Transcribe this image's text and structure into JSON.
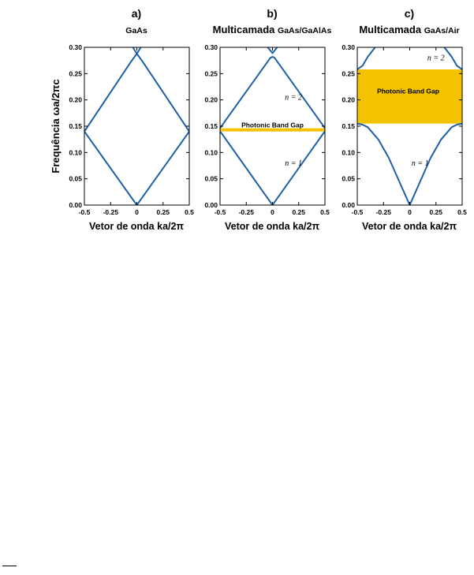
{
  "figure": {
    "ylabel": "Frequência ωa/2πc",
    "colors": {
      "band": "#1f5fa8",
      "gap": "#f3c200",
      "axis": "#000000"
    }
  },
  "chart_data": [
    {
      "type": "line",
      "panel_label": "a)",
      "title": "GaAs",
      "title_prefix": "",
      "xlabel": "",
      "ylabel": "Frequência ωa/2πc",
      "xlim": [
        -0.5,
        0.5
      ],
      "ylim": [
        0.0,
        0.3
      ],
      "x_ticks": [
        "-0.5",
        "-0.25",
        "0",
        "0.25",
        "0.5"
      ],
      "y_ticks": [
        "0.00",
        "0.05",
        "0.10",
        "0.15",
        "0.20",
        "0.25",
        "0.30"
      ],
      "gap": null,
      "band_labels": [],
      "series": [
        {
          "x": [
            -0.5,
            0.0,
            0.5
          ],
          "y": [
            0.14,
            0.0,
            0.14
          ]
        },
        {
          "x": [
            -0.5,
            -0.058,
            0.0,
            0.058,
            0.5
          ],
          "y": [
            0.14,
            0.272,
            0.288,
            0.272,
            0.14
          ]
        },
        {
          "x": [
            -0.038,
            0.0,
            0.038
          ],
          "y": [
            0.3,
            0.288,
            0.3
          ]
        }
      ]
    },
    {
      "type": "line",
      "panel_label": "b)",
      "title": "GaAs/GaAlAs",
      "title_prefix": "Multicamada",
      "xlabel": "Vetor de onda ka/2π",
      "xlim": [
        -0.5,
        0.5
      ],
      "ylim": [
        0.0,
        0.3
      ],
      "x_ticks": [
        "-0.5",
        "-0.25",
        "0",
        "0.25",
        "0.5"
      ],
      "y_ticks": [
        "0.00",
        "0.05",
        "0.10",
        "0.15",
        "0.20",
        "0.25",
        "0.30"
      ],
      "gap": {
        "label": "Photonic Band Gap",
        "y0": 0.14,
        "y1": 0.146
      },
      "band_labels": [
        {
          "text": "n = 2",
          "x": 0.2,
          "y": 0.2
        },
        {
          "text": "n = 1",
          "x": 0.2,
          "y": 0.075
        }
      ],
      "series": [
        {
          "x": [
            -0.5,
            -0.48,
            0.0,
            0.48,
            0.5
          ],
          "y": [
            0.14,
            0.135,
            0.0,
            0.135,
            0.14
          ]
        },
        {
          "x": [
            -0.5,
            -0.48,
            -0.02,
            0.0,
            0.02,
            0.48,
            0.5
          ],
          "y": [
            0.146,
            0.152,
            0.28,
            0.282,
            0.28,
            0.152,
            0.146
          ]
        },
        {
          "x": [
            -0.045,
            0.0,
            0.045
          ],
          "y": [
            0.3,
            0.289,
            0.3
          ]
        }
      ]
    },
    {
      "type": "line",
      "panel_label": "c)",
      "title": "GaAs/Air",
      "title_prefix": "Multicamada",
      "xlabel": "Vetor de onda ka/2π",
      "xlim": [
        -0.5,
        0.5
      ],
      "ylim": [
        0.0,
        0.3
      ],
      "x_ticks": [
        "-0.5",
        "-0.25",
        "0",
        "0.25",
        "0.5"
      ],
      "y_ticks": [
        "0.00",
        "0.05",
        "0.10",
        "0.15",
        "0.20",
        "0.25",
        "0.30"
      ],
      "gap": {
        "label": "Photonic Band Gap",
        "y0": 0.155,
        "y1": 0.258
      },
      "band_labels": [
        {
          "text": "n = 2",
          "x": 0.25,
          "y": 0.275
        },
        {
          "text": "n = 1",
          "x": 0.1,
          "y": 0.075
        }
      ],
      "series": [
        {
          "x": [
            -0.5,
            -0.45,
            -0.4,
            -0.3,
            -0.2,
            -0.1,
            0.0,
            0.1,
            0.2,
            0.3,
            0.4,
            0.45,
            0.5
          ],
          "y": [
            0.155,
            0.153,
            0.148,
            0.125,
            0.09,
            0.045,
            0.0,
            0.045,
            0.09,
            0.125,
            0.148,
            0.153,
            0.155
          ]
        },
        {
          "x": [
            -0.5,
            -0.45,
            -0.4,
            -0.33
          ],
          "y": [
            0.258,
            0.265,
            0.282,
            0.3
          ]
        },
        {
          "x": [
            0.33,
            0.4,
            0.45,
            0.5
          ],
          "y": [
            0.3,
            0.282,
            0.265,
            0.258
          ]
        }
      ]
    }
  ]
}
